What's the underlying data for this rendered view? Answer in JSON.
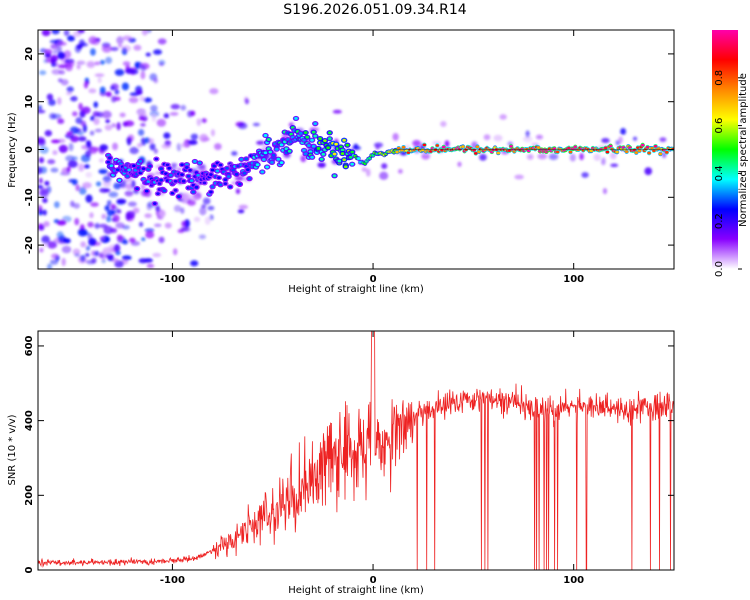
{
  "title": "S196.2026.051.09.34.R14",
  "chart_data": [
    {
      "type": "heatmap",
      "xlabel": "Height of straight line (km)",
      "ylabel": "Frequency (Hz)",
      "xlim": [
        -167,
        150
      ],
      "ylim": [
        -25,
        25
      ],
      "xticks": [
        -100,
        0,
        100
      ],
      "yticks": [
        -20,
        -10,
        0,
        10,
        20
      ],
      "colorbar": {
        "label": "Normalized spectral amplitude",
        "range": [
          0,
          1
        ],
        "ticks": [
          "0.0",
          "0.2",
          "0.4",
          "0.6",
          "0.8"
        ],
        "colormap": [
          "#ffffff",
          "#8800ff",
          "#0000ff",
          "#00ffff",
          "#00ff00",
          "#ffff00",
          "#ff8800",
          "#ff0000",
          "#ff00aa"
        ]
      },
      "ridge": {
        "x": [
          -130,
          -120,
          -110,
          -100,
          -90,
          -80,
          -70,
          -60,
          -50,
          -40,
          -30,
          -20,
          -10,
          -5,
          0,
          5,
          10,
          20,
          40,
          60,
          80,
          100,
          120,
          150
        ],
        "freq": [
          -3,
          -5,
          -6,
          -6,
          -6,
          -5,
          -5,
          -3,
          0,
          3,
          1,
          0,
          -1,
          -3,
          -1,
          -1,
          0,
          0,
          0,
          0,
          0,
          0,
          0,
          0
        ],
        "amplitude": [
          0.35,
          0.3,
          0.3,
          0.3,
          0.3,
          0.3,
          0.3,
          0.35,
          0.4,
          0.4,
          0.45,
          0.6,
          0.5,
          0.45,
          0.55,
          0.6,
          0.7,
          0.85,
          0.9,
          0.95,
          1.0,
          0.95,
          0.95,
          0.9
        ]
      }
    },
    {
      "type": "line",
      "xlabel": "Height of straight line (km)",
      "ylabel": "SNR (10 * v/v)",
      "xlim": [
        -167,
        150
      ],
      "ylim": [
        0,
        640
      ],
      "xticks": [
        -100,
        0,
        100
      ],
      "yticks": [
        0,
        200,
        400,
        600
      ],
      "color": "#ee2222",
      "series": [
        {
          "x": [
            -167,
            -140,
            -110,
            -90,
            -80,
            -70,
            -60,
            -50,
            -40,
            -30,
            -20,
            -10,
            -5,
            0,
            5,
            10,
            15,
            20,
            30,
            40,
            50,
            60,
            70,
            80,
            90,
            100,
            110,
            120,
            130,
            140,
            150
          ],
          "values": [
            20,
            20,
            22,
            30,
            50,
            80,
            120,
            150,
            200,
            240,
            300,
            320,
            330,
            360,
            340,
            370,
            390,
            410,
            430,
            450,
            460,
            460,
            450,
            440,
            420,
            440,
            440,
            435,
            430,
            440,
            440
          ]
        }
      ]
    }
  ]
}
